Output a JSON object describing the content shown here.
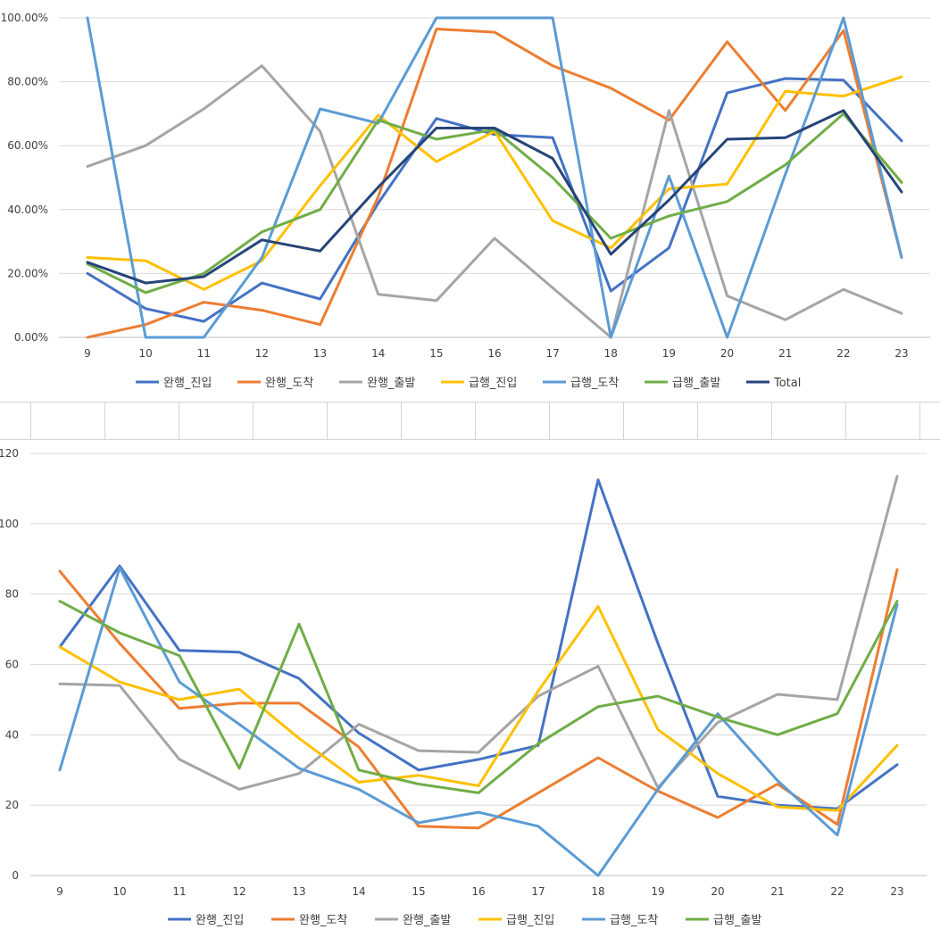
{
  "chart_data": [
    {
      "type": "line",
      "x": [
        "9",
        "10",
        "11",
        "12",
        "13",
        "14",
        "15",
        "16",
        "17",
        "18",
        "19",
        "20",
        "21",
        "22",
        "23"
      ],
      "ylim": [
        0,
        100
      ],
      "y_ticks": [
        "0.00%",
        "20.00%",
        "40.00%",
        "60.00%",
        "80.00%",
        "100.00%"
      ],
      "grid": true,
      "legend": "bottom",
      "series": [
        {
          "name": "완행_진입",
          "color": "#4472C4",
          "values": [
            20,
            9,
            5,
            17,
            12,
            42,
            68.5,
            63.5,
            62.5,
            14.5,
            28,
            76.5,
            81,
            80.5,
            61.5
          ]
        },
        {
          "name": "완행_도착",
          "color": "#ED7D31",
          "values": [
            0,
            4,
            11,
            8.5,
            4,
            44,
            96.5,
            95.5,
            85,
            78,
            68,
            92.5,
            71,
            96,
            25
          ]
        },
        {
          "name": "완행_출발",
          "color": "#A5A5A5",
          "values": [
            53.5,
            60,
            71.5,
            85,
            64.5,
            13.5,
            11.5,
            31,
            15.5,
            0,
            71,
            13,
            5.5,
            15,
            7.5
          ]
        },
        {
          "name": "급행_진입",
          "color": "#FFC000",
          "values": [
            25,
            24,
            15,
            24,
            47.5,
            69.5,
            55,
            64.5,
            36.5,
            28,
            46.5,
            48,
            77,
            75.5,
            81.5
          ]
        },
        {
          "name": "급행_도착",
          "color": "#5B9BD5",
          "values": [
            100,
            0,
            0,
            25,
            71.5,
            67,
            100,
            100,
            100,
            0,
            50.5,
            0,
            51,
            100,
            25
          ]
        },
        {
          "name": "급행_출발",
          "color": "#70AD47",
          "values": [
            23,
            14,
            20,
            33,
            40,
            68,
            62,
            65,
            50,
            31,
            38,
            42.5,
            54,
            70,
            48.5
          ]
        },
        {
          "name": "Total",
          "color": "#264478",
          "values": [
            23.5,
            17,
            19,
            30.5,
            27,
            47,
            65.5,
            65.5,
            56,
            26,
            43,
            62,
            62.5,
            71,
            45.5
          ]
        }
      ]
    },
    {
      "type": "line",
      "x": [
        "9",
        "10",
        "11",
        "12",
        "13",
        "14",
        "15",
        "16",
        "17",
        "18",
        "19",
        "20",
        "21",
        "22",
        "23"
      ],
      "ylim": [
        0,
        120
      ],
      "y_ticks": [
        "0",
        "20",
        "40",
        "60",
        "80",
        "100",
        "120"
      ],
      "grid": true,
      "legend": "bottom",
      "series": [
        {
          "name": "완행_진입",
          "color": "#4472C4",
          "values": [
            65,
            88,
            64,
            63.5,
            56,
            40.5,
            30,
            33,
            37,
            112.5,
            66,
            22.5,
            20,
            19,
            31.5
          ]
        },
        {
          "name": "완행_도착",
          "color": "#ED7D31",
          "values": [
            86.5,
            66,
            47.5,
            49,
            49,
            36.5,
            14,
            13.5,
            23.5,
            33.5,
            24,
            16.5,
            26,
            14.5,
            87
          ]
        },
        {
          "name": "완행_출발",
          "color": "#A5A5A5",
          "values": [
            54.5,
            54,
            33,
            24.5,
            29,
            43,
            35.5,
            35,
            51,
            59.5,
            25,
            43.5,
            51.5,
            50,
            113.5
          ]
        },
        {
          "name": "급행_진입",
          "color": "#FFC000",
          "values": [
            65,
            55,
            50,
            53,
            39,
            26.5,
            28.5,
            25.5,
            52.5,
            76.5,
            41.5,
            29,
            19.5,
            18.5,
            37
          ]
        },
        {
          "name": "급행_도착",
          "color": "#5B9BD5",
          "values": [
            30,
            87.5,
            55,
            43,
            30.5,
            24.5,
            15,
            18,
            14,
            0,
            24.5,
            46,
            27,
            11.5,
            77
          ]
        },
        {
          "name": "급행_출발",
          "color": "#70AD47",
          "values": [
            78,
            69,
            62.5,
            30.5,
            71.5,
            30,
            26,
            23.5,
            37.5,
            48,
            51,
            45,
            40,
            46,
            78
          ]
        }
      ]
    }
  ]
}
